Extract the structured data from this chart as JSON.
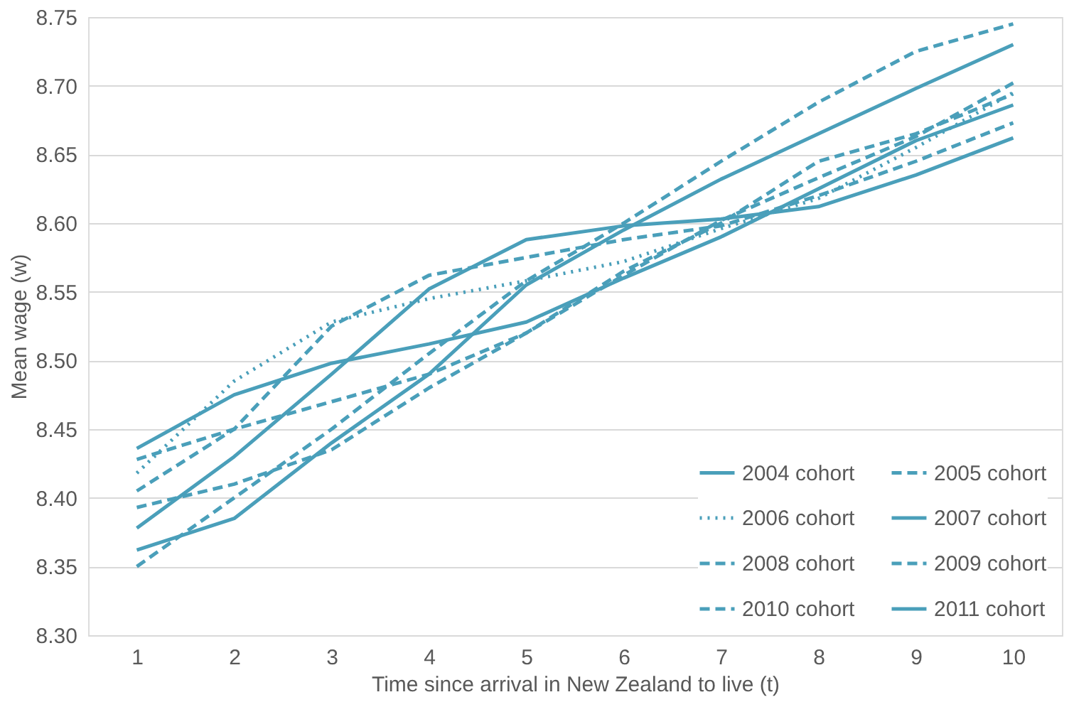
{
  "chart_data": {
    "type": "line",
    "xlabel": "Time since arrival in New Zealand to live (t)",
    "ylabel": "Mean wage (w)",
    "x": [
      1,
      2,
      3,
      4,
      5,
      6,
      7,
      8,
      9,
      10
    ],
    "xlim": [
      0.5,
      10.5
    ],
    "xticks": [
      1,
      2,
      3,
      4,
      5,
      6,
      7,
      8,
      9,
      10
    ],
    "ylim": [
      8.3,
      8.75
    ],
    "yticks": [
      {
        "value": 8.3,
        "label": "8.30"
      },
      8.35,
      {
        "value": 8.4,
        "label": "8.40"
      },
      8.45,
      {
        "value": 8.5,
        "label": "8.50"
      },
      8.55,
      {
        "value": 8.6,
        "label": "8.60"
      },
      8.65,
      {
        "value": 8.7,
        "label": "8.70"
      },
      8.75
    ],
    "grid": "y",
    "legend": "bottom right",
    "marker": "none",
    "series": [
      {
        "name": "2004 cohort",
        "color": "#4a9fba",
        "line_style": "solid",
        "values": [
          8.378,
          8.43,
          8.49,
          8.552,
          8.588,
          8.598,
          8.603,
          8.612,
          8.635,
          8.662
        ]
      },
      {
        "name": "2005 cohort",
        "color": "#4a9fba",
        "line_style": "dashed",
        "values": [
          8.405,
          8.45,
          8.525,
          8.562,
          8.575,
          8.588,
          8.598,
          8.62,
          8.645,
          8.673
        ]
      },
      {
        "name": "2006 cohort",
        "color": "#4a9fba",
        "line_style": "dotted",
        "values": [
          8.418,
          8.485,
          8.528,
          8.545,
          8.558,
          8.572,
          8.596,
          8.618,
          8.655,
          8.695
        ]
      },
      {
        "name": "2007 cohort",
        "color": "#4a9fba",
        "line_style": "solid",
        "values": [
          8.436,
          8.475,
          8.498,
          8.512,
          8.528,
          8.56,
          8.59,
          8.625,
          8.66,
          8.686
        ]
      },
      {
        "name": "2008 cohort",
        "color": "#4a9fba",
        "line_style": "dashed",
        "values": [
          8.428,
          8.45,
          8.47,
          8.49,
          8.52,
          8.565,
          8.6,
          8.645,
          8.665,
          8.694
        ]
      },
      {
        "name": "2009 cohort",
        "color": "#4a9fba",
        "line_style": "dashed",
        "values": [
          8.393,
          8.41,
          8.435,
          8.48,
          8.52,
          8.562,
          8.602,
          8.633,
          8.663,
          8.702
        ]
      },
      {
        "name": "2010 cohort",
        "color": "#4a9fba",
        "line_style": "dashed",
        "values": [
          8.35,
          8.4,
          8.45,
          8.505,
          8.558,
          8.6,
          8.645,
          8.688,
          8.725,
          8.745
        ]
      },
      {
        "name": "2011 cohort",
        "color": "#4a9fba",
        "line_style": "solid",
        "values": [
          8.362,
          8.385,
          8.44,
          8.49,
          8.555,
          8.595,
          8.632,
          8.665,
          8.698,
          8.73
        ]
      }
    ]
  }
}
